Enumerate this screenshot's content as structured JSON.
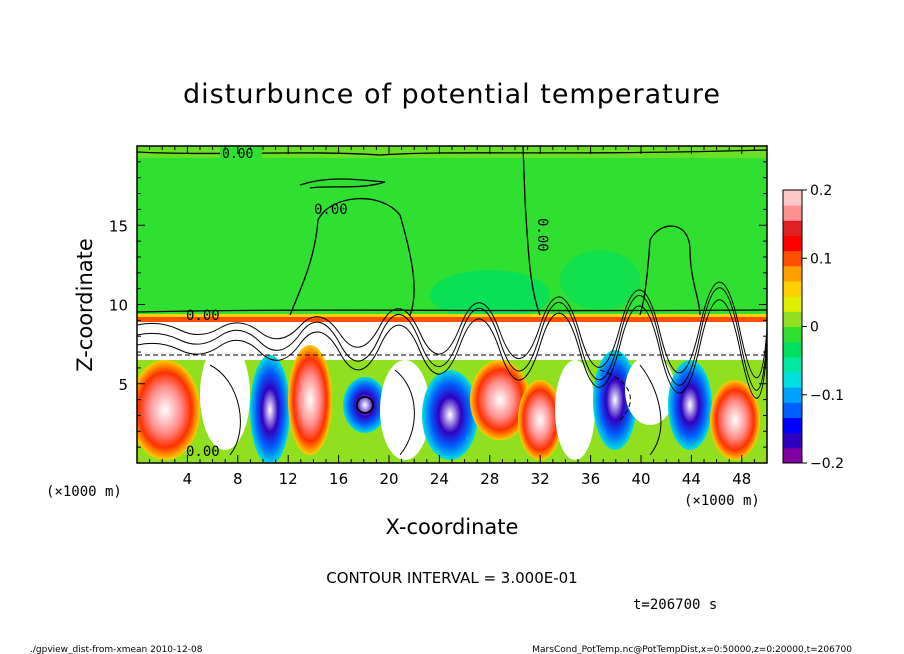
{
  "chart_data": {
    "type": "heatmap",
    "title": "disturbunce of potential temperature",
    "xlabel": "X-coordinate",
    "ylabel": "Z-coordinate",
    "x_unit": "(×1000 m)",
    "z_unit": "(×1000 m)",
    "xlim": [
      0,
      50
    ],
    "ylim": [
      0,
      20
    ],
    "x_ticks": [
      4,
      8,
      12,
      16,
      20,
      24,
      28,
      32,
      36,
      40,
      44,
      48
    ],
    "y_ticks": [
      5,
      10,
      15
    ],
    "colorbar": {
      "range": [
        -0.2,
        0.2
      ],
      "ticks": [
        {
          "value": 0.2,
          "label": "0.2"
        },
        {
          "value": 0.1,
          "label": "0.1"
        },
        {
          "value": 0,
          "label": "0"
        },
        {
          "value": -0.1,
          "label": "−0.1"
        },
        {
          "value": -0.2,
          "label": "−0.2"
        }
      ],
      "colors": [
        "#8000a0",
        "#3000c0",
        "#0000ff",
        "#0060ff",
        "#00a0ff",
        "#00e0e0",
        "#00e8a0",
        "#00e060",
        "#30e030",
        "#90e020",
        "#e0f000",
        "#ffd000",
        "#ffa000",
        "#ff5000",
        "#ff0000",
        "#e02020",
        "#ff9090",
        "#ffc8c8"
      ]
    },
    "contour_labels": [
      "0.00",
      "0.00",
      "0.00",
      "0.00",
      "0.00"
    ],
    "contour_interval_label": "CONTOUR INTERVAL = 3.000E-01",
    "time_label": "t=206700 s"
  },
  "footer": {
    "left": "./gpview_dist-from-xmean 2010-12-08",
    "right": "MarsCond_PotTemp.nc@PotTempDist,x=0:50000,z=0:20000,t=206700"
  }
}
